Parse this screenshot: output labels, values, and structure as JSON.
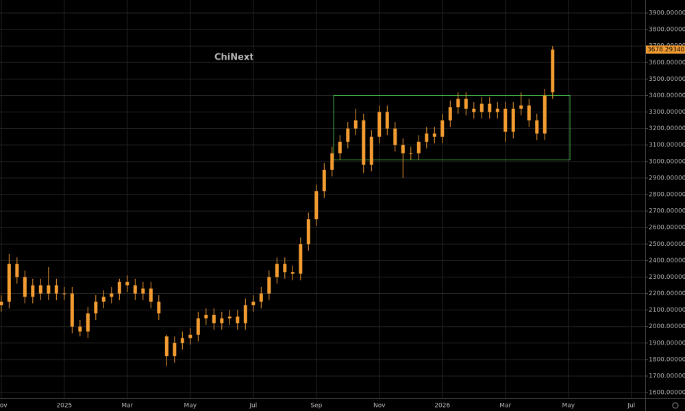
{
  "chart_data": {
    "type": "candlestick",
    "annotation": "ChiNext",
    "color": "#f39c32",
    "grid": true,
    "box": {
      "x": [
        10.55,
        18.05
      ],
      "y": [
        3010,
        3400
      ],
      "color": "#45b84a"
    },
    "last_price": {
      "value": 3678.2934,
      "label": "3678.29340"
    },
    "xlim": [
      -0.04,
      20.44
    ],
    "ylim": [
      1567,
      3979
    ],
    "xticks": [
      {
        "value": 0,
        "label": "Nov"
      },
      {
        "value": 2,
        "label": "2025"
      },
      {
        "value": 4,
        "label": "Mar"
      },
      {
        "value": 6,
        "label": "May"
      },
      {
        "value": 8,
        "label": "Jul"
      },
      {
        "value": 10,
        "label": "Sep"
      },
      {
        "value": 12,
        "label": "Nov"
      },
      {
        "value": 14,
        "label": "2026"
      },
      {
        "value": 16,
        "label": "Mar"
      },
      {
        "value": 18,
        "label": "May"
      },
      {
        "value": 20,
        "label": "Jul"
      }
    ],
    "yticks": [
      {
        "value": 1600,
        "label": "1600.000000"
      },
      {
        "value": 1700,
        "label": "1700.000000"
      },
      {
        "value": 1800,
        "label": "1800.000000"
      },
      {
        "value": 1900,
        "label": "1900.000000"
      },
      {
        "value": 2000,
        "label": "2000.000000"
      },
      {
        "value": 2100,
        "label": "2100.000000"
      },
      {
        "value": 2200,
        "label": "2200.000000"
      },
      {
        "value": 2300,
        "label": "2300.000000"
      },
      {
        "value": 2400,
        "label": "2400.000000"
      },
      {
        "value": 2500,
        "label": "2500.000000"
      },
      {
        "value": 2600,
        "label": "2600.000000"
      },
      {
        "value": 2700,
        "label": "2700.000000"
      },
      {
        "value": 2800,
        "label": "2800.000000"
      },
      {
        "value": 2900,
        "label": "2900.000000"
      },
      {
        "value": 3000,
        "label": "3000.000000"
      },
      {
        "value": 3100,
        "label": "3100.000000"
      },
      {
        "value": 3200,
        "label": "3200.000000"
      },
      {
        "value": 3300,
        "label": "3300.000000"
      },
      {
        "value": 3400,
        "label": "3400.000000"
      },
      {
        "value": 3500,
        "label": "3500.000000"
      },
      {
        "value": 3600,
        "label": "3600.000000"
      },
      {
        "value": 3700,
        "label": "3700.000000"
      },
      {
        "value": 3800,
        "label": "3800.000000"
      },
      {
        "value": 3900,
        "label": "3900.000000"
      }
    ],
    "x": [
      0,
      0.25,
      0.5,
      0.75,
      1,
      1.25,
      1.5,
      1.75,
      2,
      2.25,
      2.5,
      2.75,
      3,
      3.25,
      3.5,
      3.75,
      4,
      4.25,
      4.5,
      4.75,
      5,
      5.25,
      5.5,
      5.75,
      6,
      6.25,
      6.5,
      6.75,
      7,
      7.25,
      7.5,
      7.75,
      8,
      8.25,
      8.5,
      8.75,
      9,
      9.25,
      9.5,
      9.75,
      10,
      10.25,
      10.5,
      10.75,
      11,
      11.25,
      11.5,
      11.75,
      12,
      12.25,
      12.5,
      12.75,
      13,
      13.25,
      13.5,
      13.75,
      14,
      14.25,
      14.5,
      14.75,
      15,
      15.25,
      15.5,
      15.75,
      16,
      16.25,
      16.5,
      16.75,
      17,
      17.25,
      17.5
    ],
    "open": [
      2130,
      2150,
      2380,
      2300,
      2180,
      2250,
      2200,
      2250,
      2200,
      2200,
      2000,
      1970,
      2080,
      2150,
      2180,
      2200,
      2270,
      2250,
      2200,
      2230,
      2150,
      1940,
      1820,
      1900,
      1930,
      1950,
      2050,
      2070,
      2020,
      2050,
      2060,
      2020,
      2130,
      2150,
      2200,
      2300,
      2380,
      2330,
      2320,
      2500,
      2650,
      2820,
      2950,
      3050,
      3120,
      3200,
      3250,
      2980,
      3150,
      3300,
      3200,
      3100,
      3050,
      3050,
      3120,
      3170,
      3150,
      3250,
      3330,
      3380,
      3320,
      3300,
      3350,
      3300,
      3320,
      3180,
      3320,
      3340,
      3250,
      3170,
      3420
    ],
    "high": [
      2190,
      2440,
      2420,
      2340,
      2290,
      2290,
      2360,
      2290,
      2240,
      2240,
      2040,
      2120,
      2190,
      2220,
      2240,
      2290,
      2310,
      2290,
      2270,
      2270,
      2190,
      1950,
      1940,
      1970,
      1990,
      2090,
      2110,
      2110,
      2090,
      2100,
      2100,
      2170,
      2190,
      2240,
      2340,
      2420,
      2420,
      2370,
      2540,
      2690,
      2860,
      2990,
      3090,
      3160,
      3240,
      3320,
      3290,
      3190,
      3340,
      3340,
      3240,
      3140,
      3090,
      3160,
      3210,
      3210,
      3290,
      3370,
      3420,
      3420,
      3360,
      3390,
      3390,
      3360,
      3360,
      3360,
      3420,
      3380,
      3290,
      3440,
      3700
    ],
    "low": [
      2090,
      2110,
      2260,
      2140,
      2140,
      2160,
      2160,
      2160,
      2160,
      1960,
      1940,
      1930,
      2040,
      2110,
      2140,
      2160,
      2210,
      2160,
      2160,
      2110,
      2040,
      1760,
      1780,
      1860,
      1890,
      1910,
      2010,
      1980,
      1980,
      2010,
      1980,
      1980,
      2090,
      2110,
      2160,
      2260,
      2290,
      2280,
      2280,
      2460,
      2610,
      2780,
      2910,
      3010,
      3080,
      3160,
      2930,
      2940,
      3110,
      3160,
      3060,
      2900,
      3010,
      3010,
      3080,
      3110,
      3110,
      3210,
      3290,
      3280,
      3260,
      3260,
      3260,
      3260,
      3120,
      3140,
      3280,
      3210,
      3130,
      3130,
      3380
    ],
    "close": [
      2150,
      2380,
      2300,
      2180,
      2250,
      2200,
      2250,
      2200,
      2200,
      2000,
      1970,
      2080,
      2150,
      2180,
      2200,
      2270,
      2250,
      2200,
      2230,
      2150,
      2080,
      1820,
      1900,
      1930,
      1950,
      2050,
      2070,
      2020,
      2050,
      2060,
      2020,
      2130,
      2150,
      2200,
      2300,
      2380,
      2330,
      2320,
      2500,
      2650,
      2820,
      2950,
      3050,
      3120,
      3200,
      3250,
      2980,
      3150,
      3300,
      3200,
      3100,
      3050,
      3050,
      3120,
      3170,
      3150,
      3250,
      3330,
      3380,
      3320,
      3300,
      3350,
      3300,
      3320,
      3180,
      3320,
      3340,
      3250,
      3170,
      3400,
      3678.2934
    ]
  }
}
